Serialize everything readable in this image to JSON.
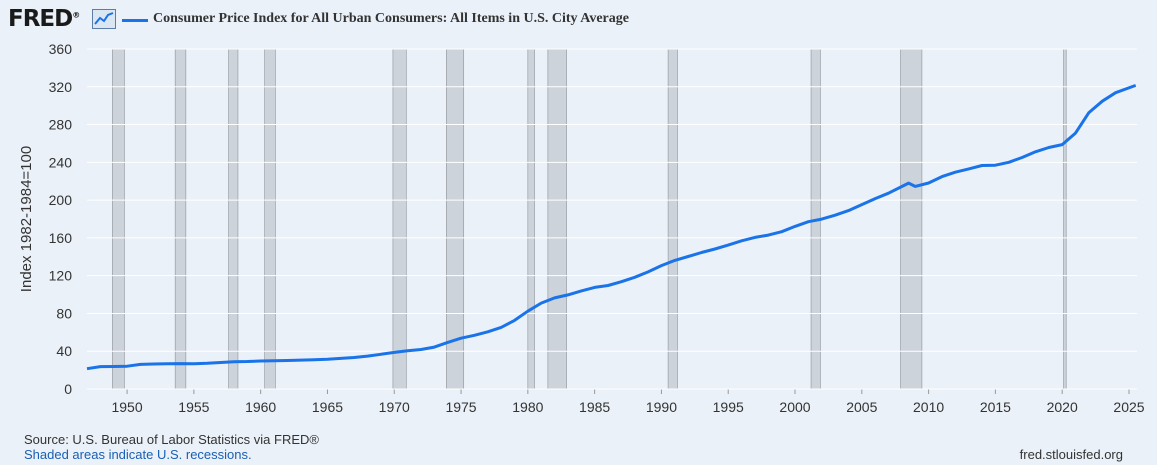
{
  "header": {
    "logo": "FRED",
    "logo_suffix": "®"
  },
  "footer": {
    "source": "Source: U.S. Bureau of Labor Statistics via FRED®",
    "shaded_note": "Shaded areas indicate U.S. recessions.",
    "credit": "fred.stlouisfed.org"
  },
  "colors": {
    "series": "#1a73e8",
    "recession": "#cdd3da",
    "grid": "#ffffff",
    "plot_bg": "#eaf1f8"
  },
  "chart_data": {
    "type": "line",
    "title": "Consumer Price Index for All Urban Consumers: All Items in U.S. City Average",
    "ylabel": "Index 1982-1984=100",
    "xlabel": "",
    "xlim": [
      1947.0,
      2025.6
    ],
    "ylim": [
      0,
      360
    ],
    "x_ticks": [
      1950,
      1955,
      1960,
      1965,
      1970,
      1975,
      1980,
      1985,
      1990,
      1995,
      2000,
      2005,
      2010,
      2015,
      2020,
      2025
    ],
    "y_ticks": [
      0,
      40,
      80,
      120,
      160,
      200,
      240,
      280,
      320,
      360
    ],
    "recessions": [
      [
        1948.9,
        1949.8
      ],
      [
        1953.6,
        1954.4
      ],
      [
        1957.6,
        1958.3
      ],
      [
        1960.3,
        1961.1
      ],
      [
        1969.9,
        1970.9
      ],
      [
        1973.9,
        1975.2
      ],
      [
        1980.0,
        1980.5
      ],
      [
        1981.5,
        1982.9
      ],
      [
        1990.5,
        1991.2
      ],
      [
        2001.2,
        2001.9
      ],
      [
        2007.9,
        2009.5
      ],
      [
        2020.1,
        2020.3
      ]
    ],
    "series": [
      {
        "name": "Consumer Price Index for All Urban Consumers: All Items in U.S. City Average",
        "x": [
          1947,
          1948,
          1949,
          1950,
          1951,
          1952,
          1953,
          1954,
          1955,
          1956,
          1957,
          1958,
          1959,
          1960,
          1961,
          1962,
          1963,
          1964,
          1965,
          1966,
          1967,
          1968,
          1969,
          1970,
          1971,
          1972,
          1973,
          1974,
          1975,
          1976,
          1977,
          1978,
          1979,
          1980,
          1981,
          1982,
          1983,
          1984,
          1985,
          1986,
          1987,
          1988,
          1989,
          1990,
          1991,
          1992,
          1993,
          1994,
          1995,
          1996,
          1997,
          1998,
          1999,
          2000,
          2001,
          2002,
          2003,
          2004,
          2005,
          2006,
          2007,
          2008.5,
          2009,
          2010,
          2011,
          2012,
          2013,
          2014,
          2015,
          2016,
          2017,
          2018,
          2019,
          2020,
          2021,
          2022,
          2023,
          2024,
          2025.5
        ],
        "values": [
          21.5,
          23.7,
          23.8,
          24.1,
          26.0,
          26.5,
          26.7,
          26.9,
          26.8,
          27.2,
          28.1,
          28.9,
          29.1,
          29.6,
          29.9,
          30.2,
          30.6,
          31.0,
          31.5,
          32.4,
          33.4,
          34.8,
          36.7,
          38.8,
          40.5,
          41.8,
          44.4,
          49.3,
          53.8,
          56.9,
          60.6,
          65.2,
          72.6,
          82.4,
          90.9,
          96.5,
          99.6,
          103.9,
          107.6,
          109.6,
          113.6,
          118.3,
          124.0,
          130.7,
          136.2,
          140.3,
          144.5,
          148.2,
          152.4,
          156.9,
          160.5,
          163.0,
          166.6,
          172.2,
          177.1,
          179.9,
          184.0,
          188.9,
          195.3,
          201.6,
          207.3,
          218.0,
          214.5,
          218.1,
          224.9,
          229.6,
          233.0,
          236.7,
          237.0,
          240.0,
          245.1,
          251.1,
          255.7,
          258.8,
          271.0,
          292.7,
          304.7,
          313.7,
          321.5
        ]
      }
    ]
  }
}
